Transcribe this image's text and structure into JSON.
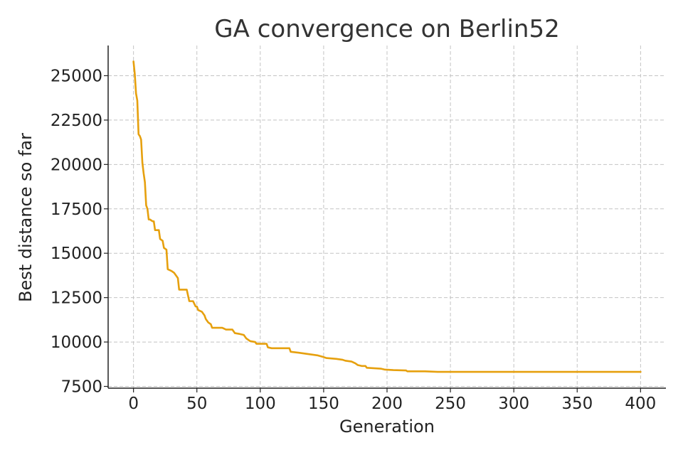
{
  "chart_data": {
    "type": "line",
    "title": "GA convergence on Berlin52",
    "xlabel": "Generation",
    "ylabel": "Best distance so far",
    "xlim": [
      -20,
      420
    ],
    "ylim": [
      7400,
      26700
    ],
    "x_ticks": [
      0,
      50,
      100,
      150,
      200,
      250,
      300,
      350,
      400
    ],
    "y_ticks": [
      7500,
      10000,
      12500,
      15000,
      17500,
      20000,
      22500,
      25000
    ],
    "grid": true,
    "legend": "none",
    "line_color": "#e6a00e",
    "series": [
      {
        "points": [
          [
            0,
            25800
          ],
          [
            1,
            25100
          ],
          [
            2,
            24000
          ],
          [
            3,
            23600
          ],
          [
            4,
            21700
          ],
          [
            5,
            21600
          ],
          [
            6,
            21400
          ],
          [
            7,
            20100
          ],
          [
            8,
            19500
          ],
          [
            9,
            19000
          ],
          [
            10,
            17700
          ],
          [
            11,
            17500
          ],
          [
            12,
            16900
          ],
          [
            13,
            16900
          ],
          [
            15,
            16800
          ],
          [
            16,
            16800
          ],
          [
            17,
            16300
          ],
          [
            20,
            16300
          ],
          [
            21,
            15800
          ],
          [
            23,
            15700
          ],
          [
            24,
            15300
          ],
          [
            26,
            15200
          ],
          [
            27,
            14100
          ],
          [
            30,
            14000
          ],
          [
            32,
            13900
          ],
          [
            34,
            13700
          ],
          [
            35,
            13600
          ],
          [
            36,
            12950
          ],
          [
            42,
            12950
          ],
          [
            44,
            12300
          ],
          [
            47,
            12300
          ],
          [
            49,
            12000
          ],
          [
            50,
            12000
          ],
          [
            51,
            11800
          ],
          [
            54,
            11700
          ],
          [
            56,
            11500
          ],
          [
            57,
            11300
          ],
          [
            59,
            11100
          ],
          [
            61,
            11000
          ],
          [
            62,
            10800
          ],
          [
            65,
            10800
          ],
          [
            70,
            10800
          ],
          [
            73,
            10700
          ],
          [
            78,
            10700
          ],
          [
            80,
            10500
          ],
          [
            84,
            10450
          ],
          [
            87,
            10400
          ],
          [
            89,
            10200
          ],
          [
            92,
            10050
          ],
          [
            96,
            10000
          ],
          [
            97,
            9900
          ],
          [
            105,
            9900
          ],
          [
            106,
            9700
          ],
          [
            109,
            9650
          ],
          [
            123,
            9650
          ],
          [
            124,
            9450
          ],
          [
            130,
            9400
          ],
          [
            135,
            9350
          ],
          [
            140,
            9300
          ],
          [
            145,
            9250
          ],
          [
            150,
            9150
          ],
          [
            152,
            9100
          ],
          [
            160,
            9050
          ],
          [
            165,
            9000
          ],
          [
            167,
            8950
          ],
          [
            172,
            8900
          ],
          [
            175,
            8800
          ],
          [
            177,
            8700
          ],
          [
            180,
            8650
          ],
          [
            183,
            8650
          ],
          [
            184,
            8550
          ],
          [
            195,
            8500
          ],
          [
            198,
            8450
          ],
          [
            205,
            8420
          ],
          [
            215,
            8400
          ],
          [
            216,
            8350
          ],
          [
            230,
            8350
          ],
          [
            240,
            8320
          ],
          [
            300,
            8320
          ],
          [
            400,
            8320
          ]
        ]
      }
    ]
  }
}
